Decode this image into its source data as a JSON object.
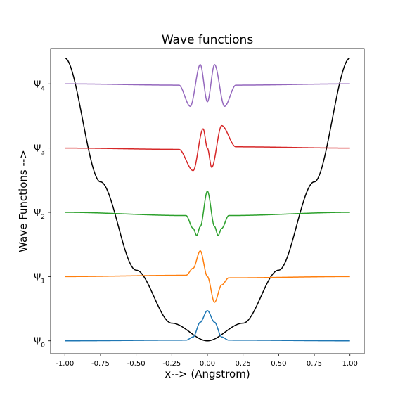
{
  "chart_data": {
    "type": "line",
    "title": "Wave functions",
    "xlabel": "x--> (Angstrom)",
    "ylabel": "Wave Functions -->",
    "xlim": [
      -1.1,
      1.1
    ],
    "ylim": [
      -0.2,
      4.55
    ],
    "grid": false,
    "legend": "none",
    "xticks": [
      "-1.00",
      "-0.75",
      "-0.50",
      "-0.25",
      "0.00",
      "0.25",
      "0.50",
      "0.75",
      "1.00"
    ],
    "yticks": [
      {
        "value": 0,
        "base": "Ψ",
        "sub": "0"
      },
      {
        "value": 1,
        "base": "Ψ",
        "sub": "1"
      },
      {
        "value": 2,
        "base": "Ψ",
        "sub": "2"
      },
      {
        "value": 3,
        "base": "Ψ",
        "sub": "3"
      },
      {
        "value": 4,
        "base": "Ψ",
        "sub": "4"
      }
    ],
    "potential": {
      "color": "#000000",
      "x": [
        -1.0,
        -0.75,
        -0.5,
        -0.25,
        0.0,
        0.25,
        0.5,
        0.75,
        1.0
      ],
      "y": [
        4.4,
        2.475,
        1.1,
        0.275,
        0.0,
        0.275,
        1.1,
        2.475,
        4.4
      ]
    },
    "series": [
      {
        "color": "#1f77b4",
        "offset": 0,
        "x": [
          -1.0,
          -0.15,
          -0.1,
          -0.05,
          0.0,
          0.05,
          0.1,
          0.15,
          1.0
        ],
        "y": [
          0,
          0.01,
          0.06,
          0.29,
          0.47,
          0.29,
          0.06,
          0.01,
          0
        ]
      },
      {
        "color": "#ff7f0e",
        "offset": 1,
        "x": [
          -1.0,
          -0.15,
          -0.1,
          -0.05,
          0.0,
          0.05,
          0.1,
          0.15,
          1.0
        ],
        "y": [
          1,
          1.02,
          1.13,
          1.4,
          1.0,
          0.6,
          0.87,
          0.98,
          1
        ]
      },
      {
        "color": "#2ca02c",
        "offset": 2,
        "x": [
          -1.0,
          -0.15,
          -0.1,
          -0.075,
          -0.05,
          0.0,
          0.05,
          0.075,
          0.1,
          0.15,
          1.0
        ],
        "y": [
          2,
          1.95,
          1.75,
          1.64,
          1.78,
          2.33,
          1.78,
          1.64,
          1.75,
          1.95,
          2
        ]
      },
      {
        "color": "#d62728",
        "offset": 3,
        "x": [
          -1.0,
          -0.2,
          -0.1,
          -0.03,
          0.0,
          0.03,
          0.1,
          0.2,
          1.0
        ],
        "y": [
          3,
          2.98,
          2.65,
          3.3,
          3.0,
          2.7,
          3.35,
          3.02,
          3
        ]
      },
      {
        "color": "#9467bd",
        "offset": 4,
        "x": [
          -1.0,
          -0.2,
          -0.12,
          -0.05,
          0.0,
          0.05,
          0.12,
          0.2,
          1.0
        ],
        "y": [
          4,
          3.98,
          3.65,
          4.3,
          3.72,
          4.3,
          3.65,
          3.98,
          4
        ]
      }
    ]
  }
}
